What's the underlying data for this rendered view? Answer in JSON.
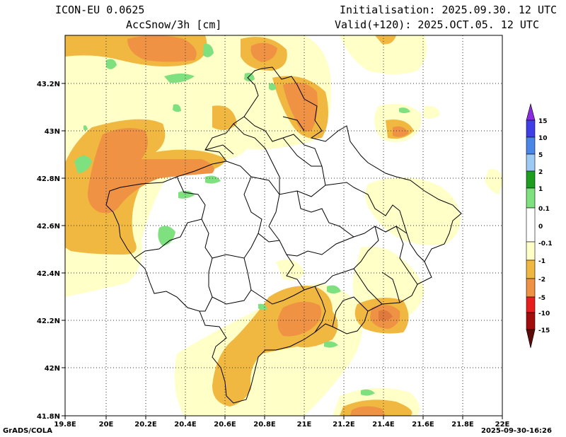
{
  "header": {
    "model": "ICON-EU 0.0625",
    "field": "AccSnow/3h [cm]",
    "init": "Initialisation: 2025.09.30. 12 UTC",
    "valid": "Valid(+120): 2025.OCT.05. 12 UTC"
  },
  "footer": {
    "left": "GrADS/COLA",
    "right": "2025-09-30-16:26"
  },
  "axes": {
    "x_ticks": [
      "19.8E",
      "20E",
      "20.2E",
      "20.4E",
      "20.6E",
      "20.8E",
      "21E",
      "21.2E",
      "21.4E",
      "21.6E",
      "21.8E",
      "22E"
    ],
    "y_ticks": [
      "43.2N",
      "43N",
      "42.8N",
      "42.6N",
      "42.4N",
      "42.2N",
      "42N",
      "41.8N"
    ]
  },
  "colorbar": {
    "levels": [
      "15",
      "10",
      "5",
      "2",
      "1",
      "0.1",
      "0",
      "-0.1",
      "-1",
      "-2",
      "-5",
      "-10",
      "-15"
    ],
    "colors": {
      "top_arrow": "#8a2be2",
      "c_10_15": "#3f3fe6",
      "c_5_10": "#4a86e8",
      "c_2_5": "#9ccaf4",
      "c_1_2": "#1e9e1e",
      "c_01_1": "#7ee07e",
      "c_m01_01": "#ffffff",
      "c_m1_m01": "#ffffc8",
      "c_m2_m1": "#f1b841",
      "c_m5_m2": "#ef9244",
      "c_m10_m5": "#e61e1e",
      "c_m15_m10": "#a10d0d",
      "bottom_arrow": "#5c0a0a"
    }
  }
}
